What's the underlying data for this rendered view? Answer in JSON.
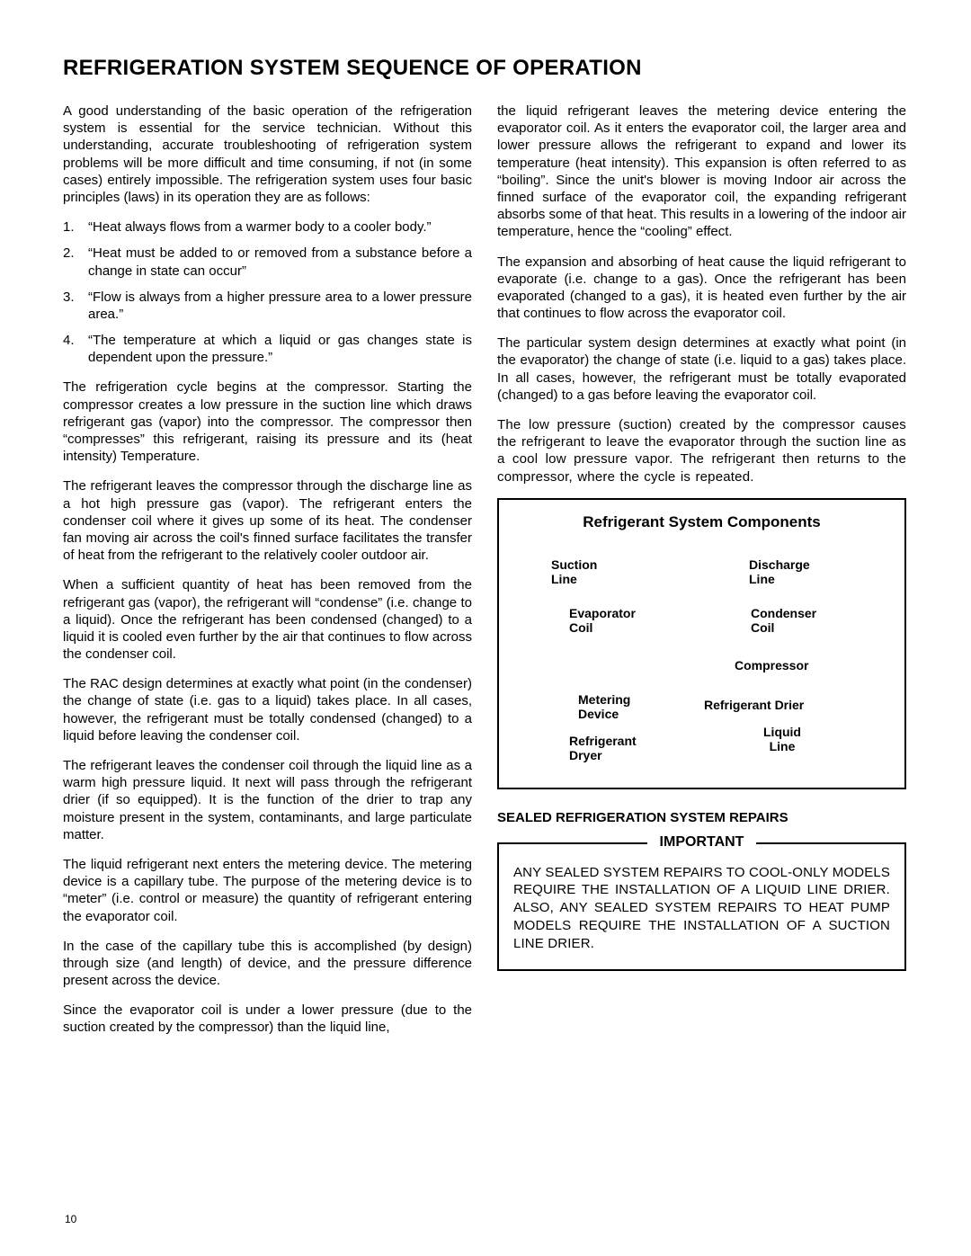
{
  "title": "REFRIGERATION SYSTEM SEQUENCE OF OPERATION",
  "pageNumber": "10",
  "left": {
    "intro": "A good understanding of the basic operation of the refrigeration system is essential for the service technician. Without this understanding, accurate troubleshooting of refrigeration system problems will be more difficult and time consuming, if not (in some cases) entirely impossible. The refrigeration system uses four basic principles (laws) in its operation they are as follows:",
    "laws": [
      "“Heat always flows from a warmer body to a cooler body.”",
      "“Heat must be added to or removed from a substance before a change in state can occur”",
      "“Flow is always from a higher pressure area to a lower pressure area.”",
      "“The temperature at which a liquid or gas changes state is dependent upon the pressure.”"
    ],
    "p1": "The refrigeration cycle begins at the compressor.  Starting the compressor creates a low pressure in the suction line which draws refrigerant gas (vapor) into the compressor. The compressor then “compresses” this refrigerant, raising its pressure and its (heat intensity) Temperature.",
    "p2": "The refrigerant leaves the compressor through the discharge line as a hot high pressure gas (vapor). The refrigerant enters the condenser coil where it gives up some of its heat. The condenser fan moving air across the coil's finned surface facilitates the transfer of heat from the refrigerant to the relatively cooler outdoor air.",
    "p3": "When a sufficient quantity of heat has been removed from the refrigerant gas (vapor), the refrigerant will “condense” (i.e. change to a liquid). Once the refrigerant has been condensed (changed) to a liquid it is cooled even further by the air that continues to flow across the condenser coil.",
    "p4": "The RAC design determines at exactly what point (in the condenser) the change of state (i.e. gas to a liquid) takes place. In all cases, however, the refrigerant must be totally condensed (changed) to a liquid before leaving the condenser coil.",
    "p5": "The refrigerant leaves the condenser coil through the liquid line as a warm high pressure liquid. It next will pass  through the refrigerant drier (if so equipped). It is the function of the drier to trap any moisture present in the system, contaminants, and large particulate matter.",
    "p6": "The liquid refrigerant next enters the metering device.  The metering device is a capillary tube. The purpose of the metering device is to “meter” (i.e. control or measure) the quantity of refrigerant entering the evaporator coil.",
    "p7": "In the case of the capillary tube this is accomplished (by design) through size (and length) of device, and the pressure difference present across the device.",
    "p8": "Since the evaporator coil is under a lower pressure (due to the suction created by the compressor) than the liquid line,"
  },
  "right": {
    "p1": "the liquid refrigerant leaves the metering device entering the evaporator coil. As it enters the evaporator coil, the larger area and lower pressure allows the refrigerant to expand and lower its temperature (heat intensity). This expansion is often referred to as “boiling”. Since the unit's blower is moving Indoor air across the finned surface of the evaporator coil, the expanding refrigerant absorbs some of that heat. This results in a lowering of the indoor air temperature, hence the “cooling” effect.",
    "p2": "The expansion and absorbing of heat cause the liquid refrigerant to evaporate (i.e. change to a gas).  Once the refrigerant has been evaporated (changed to a gas), it is heated even further by the air that continues to flow across the evaporator coil.",
    "p3": "The particular system design determines at exactly what point (in the evaporator) the change of state (i.e. liquid to a gas) takes place. In all cases, however, the refrigerant must be totally evaporated (changed) to a gas before leaving the evaporator coil.",
    "p4": "The low pressure (suction) created by the compressor causes the refrigerant to leave the evaporator through the suction line as a cool low pressure vapor. The refrigerant then returns to the compressor, where the cycle is repeated."
  },
  "diagram": {
    "title": "Refrigerant System Components",
    "labels": {
      "suction": "Suction\nLine",
      "discharge": "Discharge\nLine",
      "evap": "Evaporator\nCoil",
      "cond": "Condenser\nCoil",
      "compressor": "Compressor",
      "metering": "Metering\nDevice",
      "drier": "Refrigerant Drier",
      "refDryer": "Refrigerant\nDryer",
      "liquid": "Liquid\nLine"
    }
  },
  "sealed": {
    "heading": "SEALED REFRIGERATION SYSTEM REPAIRS",
    "importantLabel": "IMPORTANT",
    "importantText": "ANY SEALED SYSTEM REPAIRS TO COOL-ONLY MODELS REQUIRE THE INSTALLATION OF A LIQUID LINE DRIER.  ALSO, ANY SEALED SYSTEM REPAIRS TO HEAT PUMP MODELS REQUIRE THE INSTALLATION OF A SUCTION LINE DRIER."
  }
}
